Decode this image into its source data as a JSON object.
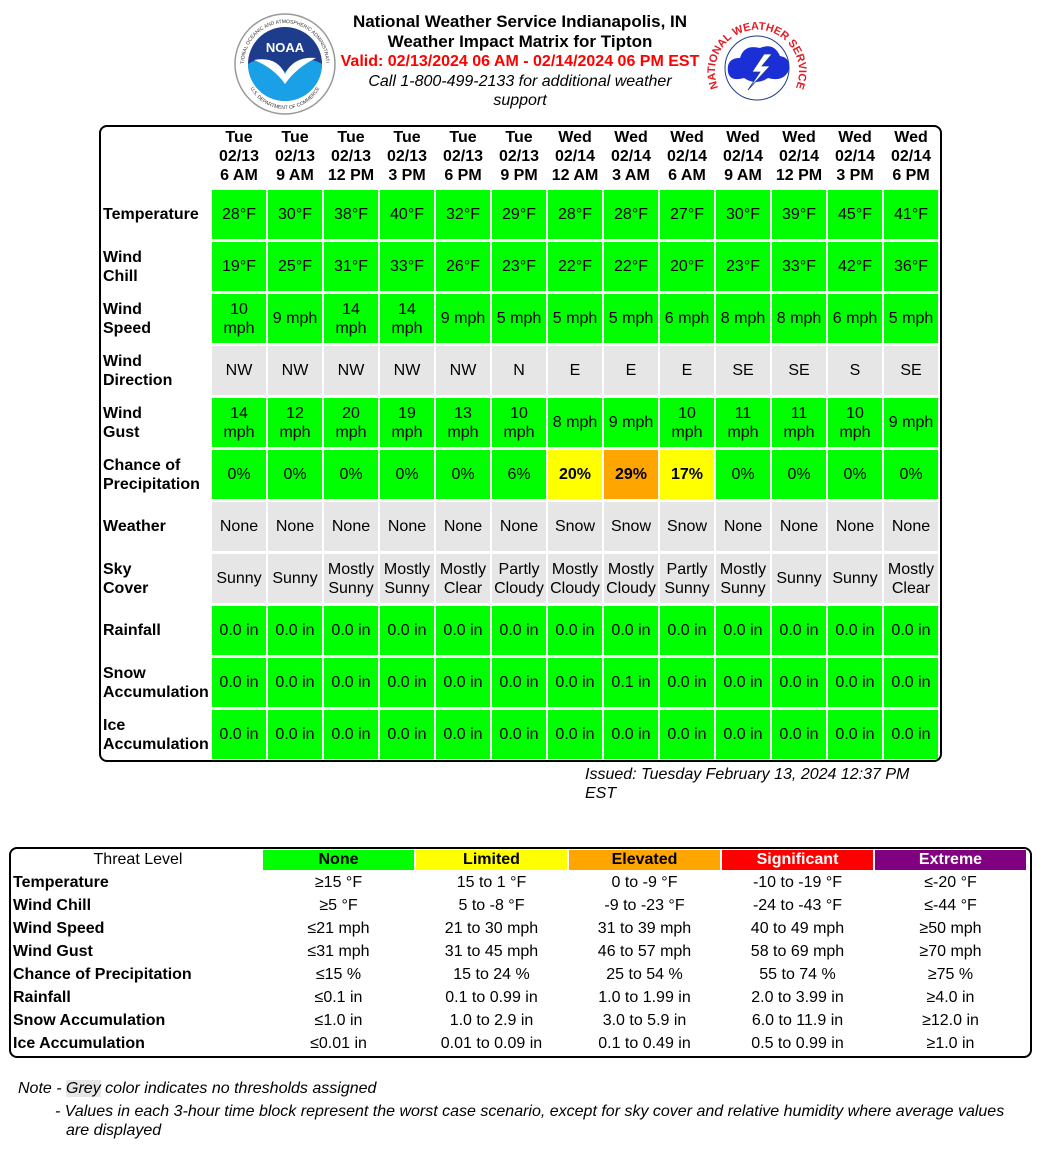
{
  "header": {
    "title": "National Weather Service Indianapolis, IN",
    "subtitle": "Weather Impact Matrix for Tipton",
    "valid": "Valid: 02/13/2024 06 AM - 02/14/2024 06 PM EST",
    "call": "Call 1-800-499-2133 for additional weather support"
  },
  "logos": {
    "noaa": {
      "label": "NOAA",
      "ring_top": "NATIONAL OCEANIC AND ATMOSPHERIC ADMINISTRATION",
      "ring_bottom": "U.S. DEPARTMENT OF COMMERCE"
    },
    "nws": {
      "ring": "NATIONAL WEATHER SERVICE"
    }
  },
  "matrix": {
    "columns": [
      {
        "day": "Tue",
        "date": "02/13",
        "time": "6 AM"
      },
      {
        "day": "Tue",
        "date": "02/13",
        "time": "9 AM"
      },
      {
        "day": "Tue",
        "date": "02/13",
        "time": "12 PM"
      },
      {
        "day": "Tue",
        "date": "02/13",
        "time": "3 PM"
      },
      {
        "day": "Tue",
        "date": "02/13",
        "time": "6 PM"
      },
      {
        "day": "Tue",
        "date": "02/13",
        "time": "9 PM"
      },
      {
        "day": "Wed",
        "date": "02/14",
        "time": "12 AM"
      },
      {
        "day": "Wed",
        "date": "02/14",
        "time": "3 AM"
      },
      {
        "day": "Wed",
        "date": "02/14",
        "time": "6 AM"
      },
      {
        "day": "Wed",
        "date": "02/14",
        "time": "9 AM"
      },
      {
        "day": "Wed",
        "date": "02/14",
        "time": "12 PM"
      },
      {
        "day": "Wed",
        "date": "02/14",
        "time": "3 PM"
      },
      {
        "day": "Wed",
        "date": "02/14",
        "time": "6 PM"
      }
    ],
    "rows": [
      {
        "label": [
          "Temperature"
        ],
        "values": [
          "28°F",
          "30°F",
          "38°F",
          "40°F",
          "32°F",
          "29°F",
          "28°F",
          "28°F",
          "27°F",
          "30°F",
          "39°F",
          "45°F",
          "41°F"
        ],
        "colors": [
          "#00ff00",
          "#00ff00",
          "#00ff00",
          "#00ff00",
          "#00ff00",
          "#00ff00",
          "#00ff00",
          "#00ff00",
          "#00ff00",
          "#00ff00",
          "#00ff00",
          "#00ff00",
          "#00ff00"
        ]
      },
      {
        "label": [
          "Wind",
          "Chill"
        ],
        "values": [
          "19°F",
          "25°F",
          "31°F",
          "33°F",
          "26°F",
          "23°F",
          "22°F",
          "22°F",
          "20°F",
          "23°F",
          "33°F",
          "42°F",
          "36°F"
        ],
        "colors": [
          "#00ff00",
          "#00ff00",
          "#00ff00",
          "#00ff00",
          "#00ff00",
          "#00ff00",
          "#00ff00",
          "#00ff00",
          "#00ff00",
          "#00ff00",
          "#00ff00",
          "#00ff00",
          "#00ff00"
        ]
      },
      {
        "label": [
          "Wind",
          "Speed"
        ],
        "values": [
          "10 mph",
          "9 mph",
          "14 mph",
          "14 mph",
          "9 mph",
          "5 mph",
          "5 mph",
          "5 mph",
          "6 mph",
          "8 mph",
          "8 mph",
          "6 mph",
          "5 mph"
        ],
        "colors": [
          "#00ff00",
          "#00ff00",
          "#00ff00",
          "#00ff00",
          "#00ff00",
          "#00ff00",
          "#00ff00",
          "#00ff00",
          "#00ff00",
          "#00ff00",
          "#00ff00",
          "#00ff00",
          "#00ff00"
        ]
      },
      {
        "label": [
          "Wind",
          "Direction"
        ],
        "values": [
          "NW",
          "NW",
          "NW",
          "NW",
          "NW",
          "N",
          "E",
          "E",
          "E",
          "SE",
          "SE",
          "S",
          "SE"
        ],
        "colors": [
          "#e6e6e6",
          "#e6e6e6",
          "#e6e6e6",
          "#e6e6e6",
          "#e6e6e6",
          "#e6e6e6",
          "#e6e6e6",
          "#e6e6e6",
          "#e6e6e6",
          "#e6e6e6",
          "#e6e6e6",
          "#e6e6e6",
          "#e6e6e6"
        ]
      },
      {
        "label": [
          "Wind",
          "Gust"
        ],
        "values": [
          "14 mph",
          "12 mph",
          "20 mph",
          "19 mph",
          "13 mph",
          "10 mph",
          "8 mph",
          "9 mph",
          "10 mph",
          "11 mph",
          "11 mph",
          "10 mph",
          "9 mph"
        ],
        "colors": [
          "#00ff00",
          "#00ff00",
          "#00ff00",
          "#00ff00",
          "#00ff00",
          "#00ff00",
          "#00ff00",
          "#00ff00",
          "#00ff00",
          "#00ff00",
          "#00ff00",
          "#00ff00",
          "#00ff00"
        ]
      },
      {
        "label": [
          "Chance of",
          "Precipitation"
        ],
        "values": [
          "0%",
          "0%",
          "0%",
          "0%",
          "0%",
          "6%",
          "20%",
          "29%",
          "17%",
          "0%",
          "0%",
          "0%",
          "0%"
        ],
        "colors": [
          "#00ff00",
          "#00ff00",
          "#00ff00",
          "#00ff00",
          "#00ff00",
          "#00ff00",
          "#ffff00",
          "#ffa500",
          "#ffff00",
          "#00ff00",
          "#00ff00",
          "#00ff00",
          "#00ff00"
        ]
      },
      {
        "label": [
          "Weather"
        ],
        "values": [
          "None",
          "None",
          "None",
          "None",
          "None",
          "None",
          "Snow",
          "Snow",
          "Snow",
          "None",
          "None",
          "None",
          "None"
        ],
        "colors": [
          "#e6e6e6",
          "#e6e6e6",
          "#e6e6e6",
          "#e6e6e6",
          "#e6e6e6",
          "#e6e6e6",
          "#e6e6e6",
          "#e6e6e6",
          "#e6e6e6",
          "#e6e6e6",
          "#e6e6e6",
          "#e6e6e6",
          "#e6e6e6"
        ]
      },
      {
        "label": [
          "Sky",
          "Cover"
        ],
        "values": [
          "Sunny",
          "Sunny",
          "Mostly Sunny",
          "Mostly Sunny",
          "Mostly Clear",
          "Partly Cloudy",
          "Mostly Cloudy",
          "Mostly Cloudy",
          "Partly Sunny",
          "Mostly Sunny",
          "Sunny",
          "Sunny",
          "Mostly Clear"
        ],
        "colors": [
          "#e6e6e6",
          "#e6e6e6",
          "#e6e6e6",
          "#e6e6e6",
          "#e6e6e6",
          "#e6e6e6",
          "#e6e6e6",
          "#e6e6e6",
          "#e6e6e6",
          "#e6e6e6",
          "#e6e6e6",
          "#e6e6e6",
          "#e6e6e6"
        ]
      },
      {
        "label": [
          "Rainfall"
        ],
        "values": [
          "0.0 in",
          "0.0 in",
          "0.0 in",
          "0.0 in",
          "0.0 in",
          "0.0 in",
          "0.0 in",
          "0.0 in",
          "0.0 in",
          "0.0 in",
          "0.0 in",
          "0.0 in",
          "0.0 in"
        ],
        "colors": [
          "#00ff00",
          "#00ff00",
          "#00ff00",
          "#00ff00",
          "#00ff00",
          "#00ff00",
          "#00ff00",
          "#00ff00",
          "#00ff00",
          "#00ff00",
          "#00ff00",
          "#00ff00",
          "#00ff00"
        ]
      },
      {
        "label": [
          "Snow",
          "Accumulation"
        ],
        "values": [
          "0.0 in",
          "0.0 in",
          "0.0 in",
          "0.0 in",
          "0.0 in",
          "0.0 in",
          "0.0 in",
          "0.1 in",
          "0.0 in",
          "0.0 in",
          "0.0 in",
          "0.0 in",
          "0.0 in"
        ],
        "colors": [
          "#00ff00",
          "#00ff00",
          "#00ff00",
          "#00ff00",
          "#00ff00",
          "#00ff00",
          "#00ff00",
          "#00ff00",
          "#00ff00",
          "#00ff00",
          "#00ff00",
          "#00ff00",
          "#00ff00"
        ]
      },
      {
        "label": [
          "Ice",
          "Accumulation"
        ],
        "values": [
          "0.0 in",
          "0.0 in",
          "0.0 in",
          "0.0 in",
          "0.0 in",
          "0.0 in",
          "0.0 in",
          "0.0 in",
          "0.0 in",
          "0.0 in",
          "0.0 in",
          "0.0 in",
          "0.0 in"
        ],
        "colors": [
          "#00ff00",
          "#00ff00",
          "#00ff00",
          "#00ff00",
          "#00ff00",
          "#00ff00",
          "#00ff00",
          "#00ff00",
          "#00ff00",
          "#00ff00",
          "#00ff00",
          "#00ff00",
          "#00ff00"
        ]
      }
    ]
  },
  "issued": "Issued: Tuesday February 13, 2024 12:37 PM EST",
  "legend": {
    "header": "Threat Level",
    "levels": [
      {
        "name": "None",
        "color": "#00ff00",
        "text_color": "#000000"
      },
      {
        "name": "Limited",
        "color": "#ffff00",
        "text_color": "#000000"
      },
      {
        "name": "Elevated",
        "color": "#ffa500",
        "text_color": "#000000"
      },
      {
        "name": "Significant",
        "color": "#ff0000",
        "text_color": "#ffffff"
      },
      {
        "name": "Extreme",
        "color": "#800080",
        "text_color": "#ffffff"
      }
    ],
    "rows": [
      {
        "label": "Temperature",
        "thresholds": [
          "≥15 °F",
          "15 to 1 °F",
          "0 to -9 °F",
          "-10 to -19 °F",
          "≤-20 °F"
        ]
      },
      {
        "label": "Wind Chill",
        "thresholds": [
          "≥5 °F",
          "5 to -8 °F",
          "-9 to -23 °F",
          "-24 to -43 °F",
          "≤-44 °F"
        ]
      },
      {
        "label": "Wind Speed",
        "thresholds": [
          "≤21 mph",
          "21 to 30 mph",
          "31 to 39 mph",
          "40 to 49 mph",
          "≥50 mph"
        ]
      },
      {
        "label": "Wind Gust",
        "thresholds": [
          "≤31 mph",
          "31 to 45 mph",
          "46 to 57 mph",
          "58 to 69 mph",
          "≥70 mph"
        ]
      },
      {
        "label": "Chance of Precipitation",
        "thresholds": [
          "≤15 %",
          "15 to 24 %",
          "25 to 54 %",
          "55 to 74 %",
          "≥75 %"
        ]
      },
      {
        "label": "Rainfall",
        "thresholds": [
          "≤0.1 in",
          "0.1 to 0.99 in",
          "1.0 to 1.99 in",
          "2.0 to 3.99 in",
          "≥4.0 in"
        ]
      },
      {
        "label": "Snow Accumulation",
        "thresholds": [
          "≤1.0 in",
          "1.0 to 2.9 in",
          "3.0 to 5.9 in",
          "6.0 to 11.9 in",
          "≥12.0 in"
        ]
      },
      {
        "label": "Ice Accumulation",
        "thresholds": [
          "≤0.01 in",
          "0.01 to 0.09 in",
          "0.1 to 0.49 in",
          "0.5 to 0.99 in",
          "≥1.0 in"
        ]
      }
    ]
  },
  "notes": {
    "prefix": "Note - ",
    "grey": "Grey",
    "suffix": " color indicates no thresholds assigned",
    "values": "- Values in each 3-hour time block represent the worst case scenario, except for sky cover and relative humidity where average values are displayed"
  }
}
